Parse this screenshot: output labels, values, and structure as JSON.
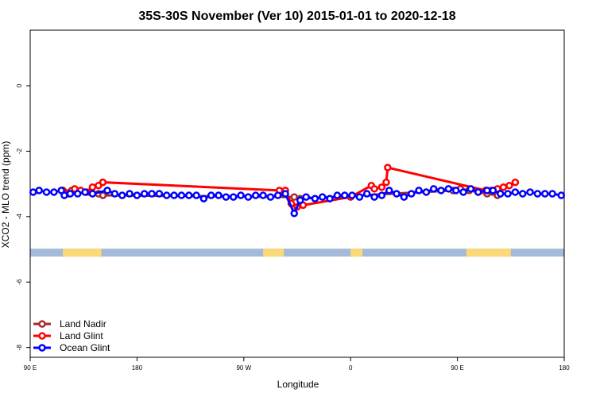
{
  "chart_data": {
    "type": "line",
    "title": "35S-30S November (Ver 10)   2015-01-01 to 2020-12-18",
    "xlabel": "Longitude",
    "ylabel": "XCO2 - MLO trend (ppm)",
    "xlim": [
      90,
      450
    ],
    "ylim": [
      -8.3,
      1.7
    ],
    "x_ticks": [
      {
        "value": 90,
        "label": "90 E"
      },
      {
        "value": 162,
        "label": "180"
      },
      {
        "value": 234,
        "label": "90 W"
      },
      {
        "value": 306,
        "label": "0"
      },
      {
        "value": 378,
        "label": "90 E"
      },
      {
        "value": 450,
        "label": "180"
      }
    ],
    "y_ticks": [
      {
        "value": 0,
        "label": "0"
      },
      {
        "value": -2,
        "label": "-2"
      },
      {
        "value": -4,
        "label": "-4"
      },
      {
        "value": -6,
        "label": "-6"
      },
      {
        "value": -8,
        "label": "-8"
      }
    ],
    "series": [
      {
        "name": "Land Nadir",
        "color": "#a52a2a",
        "x": [
          112,
          118,
          124,
          130,
          136,
          139,
          268,
          272,
          375,
          380,
          386,
          392,
          398,
          405
        ],
        "y": [
          -3.2,
          -3.2,
          -3.2,
          -3.25,
          -3.3,
          -3.35,
          -3.4,
          -3.45,
          -3.2,
          -3.15,
          -3.2,
          -3.25,
          -3.3,
          -3.35
        ]
      },
      {
        "name": "Land Glint",
        "color": "#ff0000",
        "x": [
          112,
          116,
          120,
          124,
          128,
          132,
          136,
          139,
          258,
          262,
          266,
          270,
          274,
          306,
          320,
          322,
          327,
          330,
          331,
          397,
          401,
          405,
          409,
          413,
          417
        ],
        "y": [
          -3.2,
          -3.3,
          -3.15,
          -3.2,
          -3.25,
          -3.1,
          -3.05,
          -2.95,
          -3.2,
          -3.2,
          -3.6,
          -3.7,
          -3.65,
          -3.4,
          -3.05,
          -3.15,
          -3.1,
          -2.95,
          -2.5,
          -3.2,
          -3.2,
          -3.15,
          -3.1,
          -3.05,
          -2.95
        ]
      },
      {
        "name": "Ocean Glint",
        "color": "#0000ff",
        "x": [
          92,
          96,
          101,
          106,
          111,
          113,
          117,
          122,
          127,
          132,
          142,
          147,
          152,
          157,
          162,
          167,
          172,
          177,
          182,
          187,
          192,
          197,
          202,
          207,
          212,
          217,
          222,
          227,
          232,
          237,
          242,
          247,
          252,
          257,
          262,
          268,
          272,
          276,
          282,
          287,
          292,
          297,
          302,
          307,
          312,
          317,
          322,
          327,
          332,
          337,
          342,
          347,
          352,
          357,
          362,
          367,
          372,
          377,
          382,
          387,
          392,
          398,
          402,
          407,
          412,
          417,
          422,
          427,
          432,
          437,
          442,
          448
        ],
        "y": [
          -3.25,
          -3.2,
          -3.25,
          -3.25,
          -3.2,
          -3.35,
          -3.3,
          -3.3,
          -3.25,
          -3.3,
          -3.2,
          -3.3,
          -3.35,
          -3.3,
          -3.35,
          -3.3,
          -3.3,
          -3.3,
          -3.35,
          -3.35,
          -3.35,
          -3.35,
          -3.35,
          -3.45,
          -3.35,
          -3.35,
          -3.4,
          -3.4,
          -3.35,
          -3.4,
          -3.35,
          -3.35,
          -3.4,
          -3.35,
          -3.3,
          -3.9,
          -3.5,
          -3.4,
          -3.45,
          -3.4,
          -3.45,
          -3.35,
          -3.35,
          -3.35,
          -3.4,
          -3.3,
          -3.4,
          -3.35,
          -3.2,
          -3.3,
          -3.4,
          -3.3,
          -3.2,
          -3.25,
          -3.15,
          -3.2,
          -3.15,
          -3.2,
          -3.25,
          -3.15,
          -3.25,
          -3.2,
          -3.2,
          -3.3,
          -3.3,
          -3.25,
          -3.3,
          -3.25,
          -3.3,
          -3.3,
          -3.3,
          -3.35
        ]
      }
    ],
    "legend": {
      "position": "bottom-left"
    },
    "grid": false,
    "land_mask": {
      "y": -5.1,
      "ocean_color": "#a3bad8",
      "land_color": "#fbd878",
      "land_spans": [
        [
          112,
          138
        ],
        [
          247,
          261
        ],
        [
          306,
          314
        ],
        [
          384,
          414
        ]
      ]
    }
  }
}
